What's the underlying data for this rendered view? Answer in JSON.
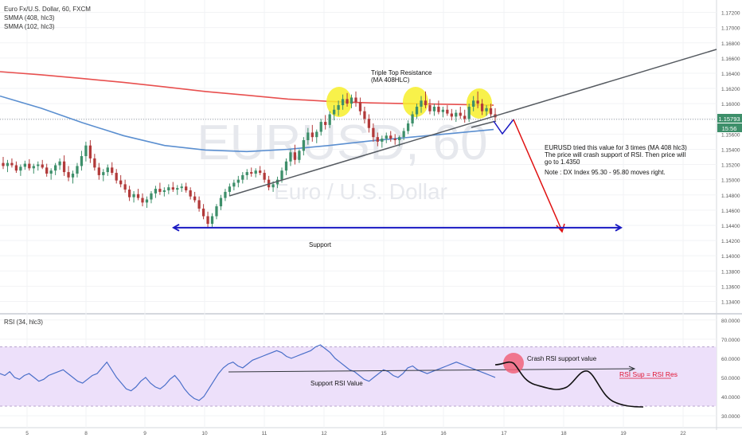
{
  "legend": {
    "symbol": "Euro Fx/U.S. Dollar, 60, FXCM",
    "ma1": "SMMA (408, hlc3)",
    "ma2": "SMMA (102, hlc3)"
  },
  "watermark": {
    "symbol": "EURUSD, 60",
    "name": "Euro / U.S. Dollar"
  },
  "annotations": {
    "triple_top_1": "Triple Top Resistance",
    "triple_top_2": "(MA 408HLC)",
    "analysis_1": "EURUSD tried this value for 3 times (MA 408 hlc3)",
    "analysis_2": "The price will crash support of RSI. Then price will",
    "analysis_3": "go to 1.4350",
    "note": "Note : DX Index 95.30 - 95.80 moves right.",
    "support": "Support",
    "rsi_label": "RSI (34, hlc3)",
    "support_rsi": "Support RSI Value",
    "crash_rsi": "Crash RSI support value",
    "rsi_sup_res": "RSI Sup = RSI Res"
  },
  "price_badges": {
    "last": "1.15793",
    "time": "15:56"
  },
  "colors": {
    "up": "#3d8f6a",
    "down": "#b23a3a",
    "ma408": "#e8504f",
    "ma102": "#5b8fd0",
    "support": "#1a1ac2",
    "projection": "#e01010",
    "rsi_line": "#4a6fc9",
    "rsi_band": "#ede0fa",
    "highlight": "#f7ee2a",
    "badge_last": "#3d8f6a",
    "crash_circle": "#f0637a",
    "rsi_sup_res": "#e01030"
  },
  "chart_data": [
    {
      "type": "candlestick",
      "x_ticks": [
        "5",
        "8",
        "9",
        "10",
        "11",
        "12",
        "15",
        "16",
        "17",
        "18",
        "19",
        "22"
      ],
      "y_ticks": [
        "1.17200",
        "1.17000",
        "1.16800",
        "1.16600",
        "1.16400",
        "1.16200",
        "1.16000",
        "1.15800",
        "1.15600",
        "1.15400",
        "1.15200",
        "1.15000",
        "1.14800",
        "1.14600",
        "1.14400",
        "1.14200",
        "1.14000",
        "1.13800",
        "1.13600",
        "1.13400"
      ],
      "ylim": [
        1.133,
        1.173
      ],
      "candles_hint": "approx. hourly OHLC traced from image",
      "ohlc": [
        [
          1.1522,
          1.153,
          1.1514,
          1.1518
        ],
        [
          1.1518,
          1.1526,
          1.151,
          1.1522
        ],
        [
          1.1522,
          1.1528,
          1.1516,
          1.1519
        ],
        [
          1.1519,
          1.1524,
          1.1509,
          1.1512
        ],
        [
          1.1512,
          1.152,
          1.1505,
          1.1517
        ],
        [
          1.1517,
          1.1525,
          1.1513,
          1.1521
        ],
        [
          1.1521,
          1.1527,
          1.1512,
          1.1515
        ],
        [
          1.1515,
          1.1521,
          1.1508,
          1.1518
        ],
        [
          1.1518,
          1.1524,
          1.1512,
          1.152
        ],
        [
          1.152,
          1.1526,
          1.1514,
          1.1516
        ],
        [
          1.1516,
          1.1521,
          1.1504,
          1.1508
        ],
        [
          1.1508,
          1.1515,
          1.15,
          1.1512
        ],
        [
          1.1512,
          1.1522,
          1.1506,
          1.1519
        ],
        [
          1.1519,
          1.1528,
          1.1513,
          1.1524
        ],
        [
          1.1524,
          1.1532,
          1.1505,
          1.151
        ],
        [
          1.151,
          1.1518,
          1.1498,
          1.1503
        ],
        [
          1.1503,
          1.1512,
          1.1495,
          1.1508
        ],
        [
          1.1508,
          1.1522,
          1.1503,
          1.1518
        ],
        [
          1.1518,
          1.1538,
          1.1512,
          1.1531
        ],
        [
          1.1531,
          1.155,
          1.1524,
          1.1545
        ],
        [
          1.1545,
          1.1552,
          1.1522,
          1.1528
        ],
        [
          1.1528,
          1.1534,
          1.1512,
          1.1516
        ],
        [
          1.1516,
          1.1522,
          1.15,
          1.1506
        ],
        [
          1.1506,
          1.1514,
          1.1498,
          1.151
        ],
        [
          1.151,
          1.152,
          1.1505,
          1.1516
        ],
        [
          1.1516,
          1.1523,
          1.1506,
          1.1509
        ],
        [
          1.1509,
          1.1514,
          1.1495,
          1.1499
        ],
        [
          1.1499,
          1.1506,
          1.149,
          1.1494
        ],
        [
          1.1494,
          1.15,
          1.1483,
          1.1487
        ],
        [
          1.1487,
          1.1492,
          1.1472,
          1.1477
        ],
        [
          1.1477,
          1.1485,
          1.147,
          1.1481
        ],
        [
          1.1481,
          1.1488,
          1.1473,
          1.1476
        ],
        [
          1.1476,
          1.1482,
          1.1465,
          1.147
        ],
        [
          1.147,
          1.1478,
          1.1463,
          1.1474
        ],
        [
          1.1474,
          1.1485,
          1.1469,
          1.1482
        ],
        [
          1.1482,
          1.1492,
          1.1476,
          1.1488
        ],
        [
          1.1488,
          1.1496,
          1.148,
          1.1484
        ],
        [
          1.1484,
          1.149,
          1.1478,
          1.1486
        ],
        [
          1.1486,
          1.1494,
          1.1481,
          1.149
        ],
        [
          1.149,
          1.1497,
          1.1484,
          1.1487
        ],
        [
          1.1487,
          1.1493,
          1.148,
          1.1489
        ],
        [
          1.1489,
          1.1495,
          1.1484,
          1.1491
        ],
        [
          1.1491,
          1.1496,
          1.1483,
          1.1486
        ],
        [
          1.1486,
          1.149,
          1.1474,
          1.1478
        ],
        [
          1.1478,
          1.1484,
          1.147,
          1.1473
        ],
        [
          1.1473,
          1.1478,
          1.1458,
          1.1462
        ],
        [
          1.1462,
          1.1468,
          1.1448,
          1.1452
        ],
        [
          1.1452,
          1.1458,
          1.1436,
          1.1442
        ],
        [
          1.1442,
          1.1456,
          1.1438,
          1.1452
        ],
        [
          1.1452,
          1.1468,
          1.1448,
          1.1465
        ],
        [
          1.1465,
          1.148,
          1.146,
          1.1476
        ],
        [
          1.1476,
          1.1488,
          1.1472,
          1.1484
        ],
        [
          1.1484,
          1.1495,
          1.1479,
          1.1491
        ],
        [
          1.1491,
          1.15,
          1.1486,
          1.1496
        ],
        [
          1.1496,
          1.1505,
          1.149,
          1.15
        ],
        [
          1.15,
          1.151,
          1.1495,
          1.1506
        ],
        [
          1.1506,
          1.1514,
          1.15,
          1.151
        ],
        [
          1.151,
          1.1516,
          1.1504,
          1.1508
        ],
        [
          1.1508,
          1.1515,
          1.1503,
          1.1512
        ],
        [
          1.1512,
          1.1518,
          1.1506,
          1.1509
        ],
        [
          1.1509,
          1.1513,
          1.1496,
          1.15
        ],
        [
          1.15,
          1.1505,
          1.1486,
          1.149
        ],
        [
          1.149,
          1.1498,
          1.1484,
          1.1494
        ],
        [
          1.1494,
          1.1504,
          1.1489,
          1.15
        ],
        [
          1.15,
          1.1516,
          1.1496,
          1.1512
        ],
        [
          1.1512,
          1.1528,
          1.1506,
          1.1524
        ],
        [
          1.1524,
          1.154,
          1.1518,
          1.1536
        ],
        [
          1.1536,
          1.1546,
          1.152,
          1.1526
        ],
        [
          1.1526,
          1.154,
          1.1522,
          1.1538
        ],
        [
          1.1538,
          1.1556,
          1.1532,
          1.1552
        ],
        [
          1.1552,
          1.1568,
          1.1546,
          1.1562
        ],
        [
          1.1562,
          1.1572,
          1.155,
          1.1556
        ],
        [
          1.1556,
          1.1566,
          1.1548,
          1.1563
        ],
        [
          1.1563,
          1.158,
          1.1558,
          1.1576
        ],
        [
          1.1576,
          1.1585,
          1.1566,
          1.1572
        ],
        [
          1.1572,
          1.159,
          1.1568,
          1.1586
        ],
        [
          1.1586,
          1.1598,
          1.1578,
          1.1592
        ],
        [
          1.1592,
          1.1604,
          1.1584,
          1.1598
        ],
        [
          1.1598,
          1.1612,
          1.1592,
          1.1606
        ],
        [
          1.1606,
          1.1614,
          1.1596,
          1.16
        ],
        [
          1.16,
          1.1612,
          1.1594,
          1.1608
        ],
        [
          1.1608,
          1.1616,
          1.1596,
          1.1602
        ],
        [
          1.1602,
          1.1608,
          1.1585,
          1.159
        ],
        [
          1.159,
          1.1596,
          1.1574,
          1.158
        ],
        [
          1.158,
          1.1586,
          1.1562,
          1.1568
        ],
        [
          1.1568,
          1.1574,
          1.155,
          1.1556
        ],
        [
          1.1556,
          1.1562,
          1.1544,
          1.155
        ],
        [
          1.155,
          1.1558,
          1.1542,
          1.1554
        ],
        [
          1.1554,
          1.1562,
          1.1548,
          1.1558
        ],
        [
          1.1558,
          1.1564,
          1.155,
          1.1554
        ],
        [
          1.1554,
          1.156,
          1.1546,
          1.1552
        ],
        [
          1.1552,
          1.1558,
          1.1544,
          1.1556
        ],
        [
          1.1556,
          1.1568,
          1.1552,
          1.1564
        ],
        [
          1.1564,
          1.1578,
          1.156,
          1.1574
        ],
        [
          1.1574,
          1.159,
          1.157,
          1.1586
        ],
        [
          1.1586,
          1.16,
          1.158,
          1.1596
        ],
        [
          1.1596,
          1.161,
          1.1588,
          1.1604
        ],
        [
          1.1604,
          1.1616,
          1.1594,
          1.1598
        ],
        [
          1.1598,
          1.1606,
          1.1586,
          1.159
        ],
        [
          1.159,
          1.16,
          1.1584,
          1.1596
        ],
        [
          1.1596,
          1.1604,
          1.1586,
          1.1589
        ],
        [
          1.1589,
          1.1596,
          1.1582,
          1.1592
        ],
        [
          1.1592,
          1.1598,
          1.1584,
          1.1587
        ],
        [
          1.1587,
          1.1593,
          1.1578,
          1.1583
        ],
        [
          1.1583,
          1.1592,
          1.1576,
          1.1588
        ],
        [
          1.1588,
          1.1596,
          1.158,
          1.1584
        ],
        [
          1.1584,
          1.1592,
          1.1575,
          1.158
        ],
        [
          1.158,
          1.16,
          1.1576,
          1.1596
        ],
        [
          1.1596,
          1.161,
          1.159,
          1.1604
        ],
        [
          1.1604,
          1.1616,
          1.1594,
          1.16
        ],
        [
          1.16,
          1.1606,
          1.1585,
          1.159
        ],
        [
          1.159,
          1.1598,
          1.1584,
          1.1594
        ],
        [
          1.1594,
          1.16,
          1.1582,
          1.1586
        ],
        [
          1.1586,
          1.1594,
          1.1578,
          1.1582
        ]
      ],
      "ma408": [
        1.1642,
        1.1638,
        1.1633,
        1.1628,
        1.1622,
        1.1616,
        1.1611,
        1.1606,
        1.1603,
        1.1601,
        1.16,
        1.1599,
        1.1598
      ],
      "ma102": [
        1.161,
        1.1594,
        1.1575,
        1.1558,
        1.1545,
        1.1539,
        1.1537,
        1.154,
        1.1545,
        1.1551,
        1.1556,
        1.1561,
        1.1566
      ],
      "support_level": 1.1437,
      "projection_target": 1.1435
    },
    {
      "type": "line",
      "name": "RSI (34, hlc3)",
      "y_ticks": [
        "80.0000",
        "70.0000",
        "60.0000",
        "50.0000",
        "40.0000",
        "30.0000"
      ],
      "ylim": [
        25,
        82
      ],
      "band": [
        35,
        66
      ],
      "values": [
        52,
        51,
        53,
        50,
        49,
        51,
        52,
        50,
        48,
        49,
        51,
        52,
        53,
        54,
        52,
        50,
        48,
        47,
        49,
        51,
        52,
        55,
        58,
        54,
        50,
        47,
        44,
        43,
        45,
        48,
        50,
        47,
        45,
        44,
        46,
        49,
        51,
        48,
        44,
        41,
        39,
        38,
        40,
        44,
        48,
        52,
        55,
        57,
        58,
        56,
        55,
        57,
        59,
        60,
        61,
        62,
        63,
        64,
        63,
        61,
        60,
        61,
        62,
        63,
        64,
        66,
        67,
        65,
        63,
        60,
        58,
        56,
        54,
        53,
        51,
        49,
        48,
        50,
        52,
        54,
        53,
        51,
        50,
        52,
        55,
        56,
        54,
        53,
        52,
        53,
        54,
        55,
        56,
        57,
        58,
        57,
        56,
        55,
        54,
        53,
        52,
        51,
        50
      ]
    }
  ]
}
